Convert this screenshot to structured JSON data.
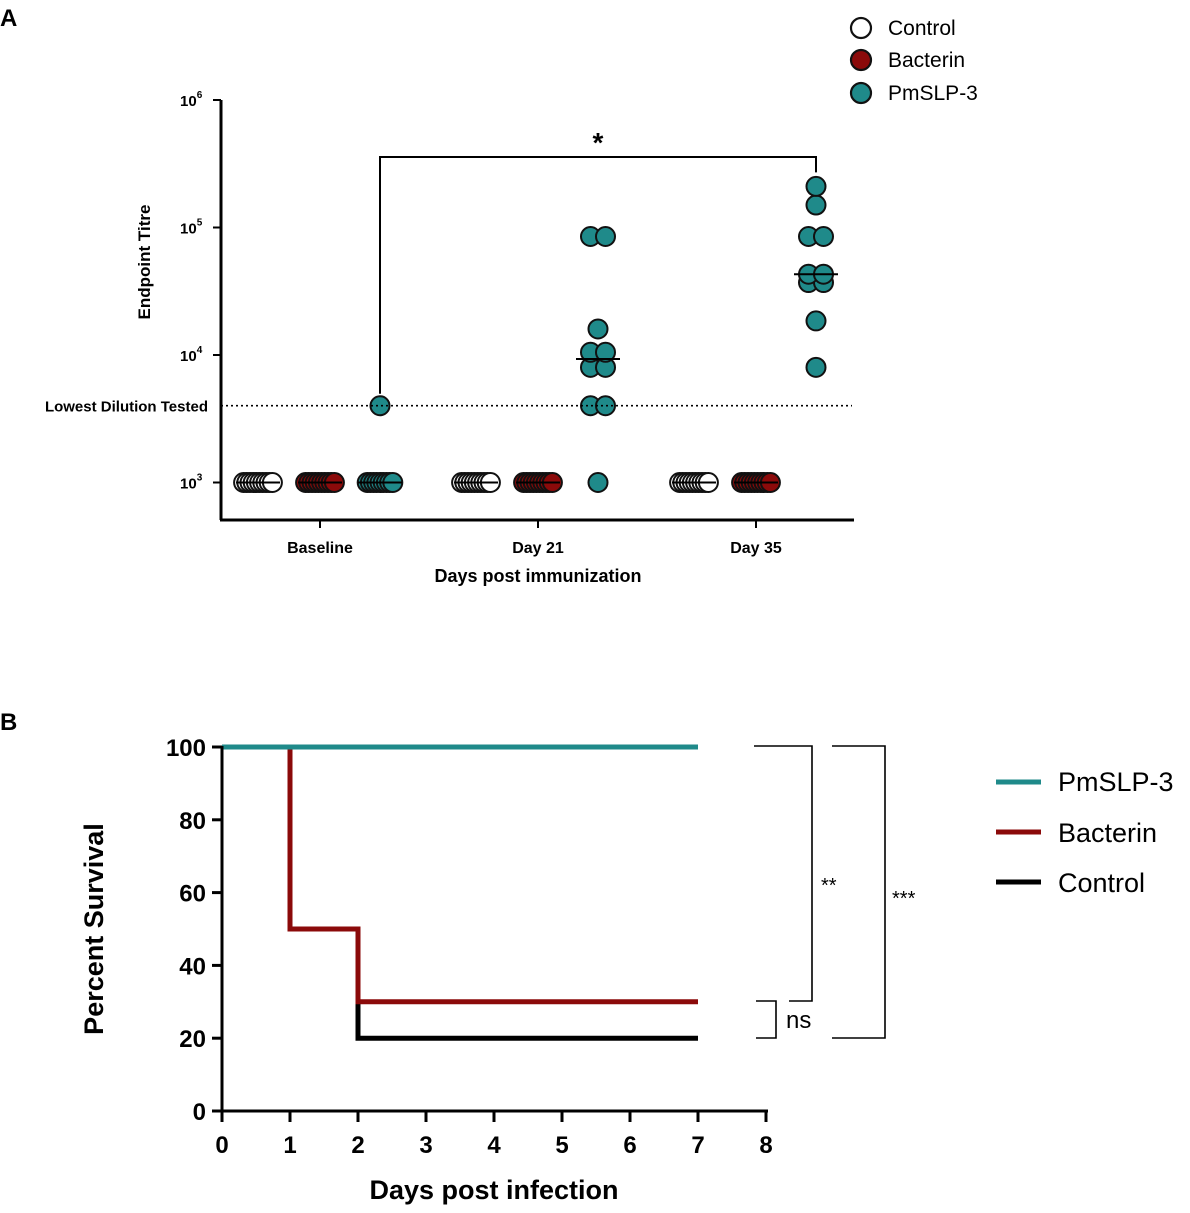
{
  "panel_labels": {
    "a": "A",
    "b": "B"
  },
  "colors": {
    "control": "#ffffff",
    "bacterin": "#8b0a0a",
    "pmslp3": "#1f8a8a",
    "outline": "#111111",
    "black": "#000000"
  },
  "chart_data": [
    {
      "type": "scatter",
      "title": "",
      "xlabel": "Days post immunization",
      "ylabel": "Endpoint Titre",
      "yscale": "log10",
      "ylim": [
        500,
        1000000
      ],
      "yticks": [
        {
          "value": 1000,
          "base": "10",
          "exp": "3"
        },
        {
          "value": 10000,
          "base": "10",
          "exp": "4"
        },
        {
          "value": 100000,
          "base": "10",
          "exp": "5"
        },
        {
          "value": 1000000,
          "base": "10",
          "exp": "6"
        }
      ],
      "categories": [
        "Baseline",
        "Day 21",
        "Day 35"
      ],
      "groups": [
        "Control",
        "Bacterin",
        "PmSLP-3"
      ],
      "reference_line": {
        "label": "Lowest Dilution Tested",
        "value": 4000
      },
      "significance": {
        "label": "*",
        "from": "Baseline / PmSLP-3",
        "to": "Day 35 / PmSLP-3"
      },
      "legend": {
        "position": "top-right",
        "entries": [
          "Control",
          "Bacterin",
          "PmSLP-3"
        ]
      },
      "series": [
        {
          "name": "Control",
          "time": "Baseline",
          "values": [
            1000,
            1000,
            1000,
            1000,
            1000,
            1000,
            1000,
            1000,
            1000,
            1000
          ],
          "median": 1000
        },
        {
          "name": "Bacterin",
          "time": "Baseline",
          "values": [
            1000,
            1000,
            1000,
            1000,
            1000,
            1000,
            1000,
            1000,
            1000,
            1000
          ],
          "median": 1000
        },
        {
          "name": "PmSLP-3",
          "time": "Baseline",
          "values": [
            1000,
            1000,
            1000,
            1000,
            1000,
            1000,
            1000,
            1000,
            1000,
            4000
          ],
          "median": 1000
        },
        {
          "name": "Control",
          "time": "Day 21",
          "values": [
            1000,
            1000,
            1000,
            1000,
            1000,
            1000,
            1000,
            1000,
            1000,
            1000
          ],
          "median": 1000
        },
        {
          "name": "Bacterin",
          "time": "Day 21",
          "values": [
            1000,
            1000,
            1000,
            1000,
            1000,
            1000,
            1000,
            1000,
            1000,
            1000
          ],
          "median": 1000
        },
        {
          "name": "PmSLP-3",
          "time": "Day 21",
          "values": [
            85000,
            85000,
            16000,
            10500,
            10500,
            8000,
            8000,
            4000,
            4000,
            1000
          ],
          "median": 9300
        },
        {
          "name": "Control",
          "time": "Day 35",
          "values": [
            1000,
            1000,
            1000,
            1000,
            1000,
            1000,
            1000,
            1000,
            1000,
            1000
          ],
          "median": 1000
        },
        {
          "name": "Bacterin",
          "time": "Day 35",
          "values": [
            1000,
            1000,
            1000,
            1000,
            1000,
            1000,
            1000,
            1000,
            1000,
            1000
          ],
          "median": 1000
        },
        {
          "name": "PmSLP-3",
          "time": "Day 35",
          "values": [
            210000,
            150000,
            85000,
            85000,
            43000,
            43000,
            37000,
            37000,
            18500,
            8000
          ],
          "median": 43000
        }
      ]
    },
    {
      "type": "line",
      "step": true,
      "title": "",
      "xlabel": "Days post infection",
      "ylabel": "Percent Survival",
      "xlim": [
        0,
        8
      ],
      "ylim": [
        0,
        100
      ],
      "xticks": [
        "0",
        "1",
        "2",
        "3",
        "4",
        "5",
        "6",
        "7",
        "8"
      ],
      "yticks": [
        "0",
        "20",
        "40",
        "60",
        "80",
        "100"
      ],
      "legend": {
        "position": "right",
        "entries": [
          "PmSLP-3",
          "Bacterin",
          "Control"
        ]
      },
      "series": [
        {
          "name": "PmSLP-3",
          "x": [
            0,
            7
          ],
          "y": [
            100,
            100
          ]
        },
        {
          "name": "Bacterin",
          "x": [
            0,
            1,
            2,
            7
          ],
          "y": [
            100,
            50,
            30,
            30
          ]
        },
        {
          "name": "Control",
          "x": [
            0,
            1,
            2,
            7
          ],
          "y": [
            100,
            50,
            20,
            20
          ]
        }
      ],
      "comparisons": [
        {
          "label": "**",
          "between": [
            "PmSLP-3",
            "Bacterin"
          ]
        },
        {
          "label": "ns",
          "between": [
            "Bacterin",
            "Control"
          ]
        },
        {
          "label": "***",
          "between": [
            "PmSLP-3",
            "Control"
          ]
        }
      ]
    }
  ]
}
